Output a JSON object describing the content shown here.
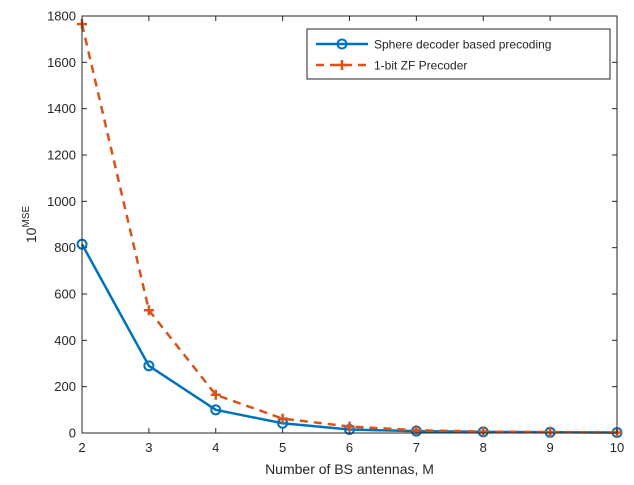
{
  "chart_data": {
    "type": "line",
    "title": "",
    "xlabel": "Number of BS antennas, M",
    "ylabel_base": "10",
    "ylabel_sup": "MSE",
    "xlim": [
      2,
      10
    ],
    "ylim": [
      0,
      1800
    ],
    "x_ticks": [
      2,
      3,
      4,
      5,
      6,
      7,
      8,
      9,
      10
    ],
    "y_ticks": [
      0,
      200,
      400,
      600,
      800,
      1000,
      1200,
      1400,
      1600,
      1800
    ],
    "legend_position": "top-right",
    "x": [
      2,
      3,
      4,
      5,
      6,
      7,
      8,
      9,
      10
    ],
    "series": [
      {
        "name": "Sphere decoder based precoding",
        "values": [
          815,
          290,
          100,
          42,
          15,
          8,
          5,
          3,
          2
        ],
        "color": "#0072BD",
        "line": "solid",
        "marker": "circle"
      },
      {
        "name": "1-bit ZF Precoder",
        "values": [
          1765,
          530,
          165,
          62,
          28,
          12,
          6,
          4,
          2
        ],
        "color": "#D95319",
        "line": "dashed",
        "marker": "plus"
      }
    ]
  }
}
